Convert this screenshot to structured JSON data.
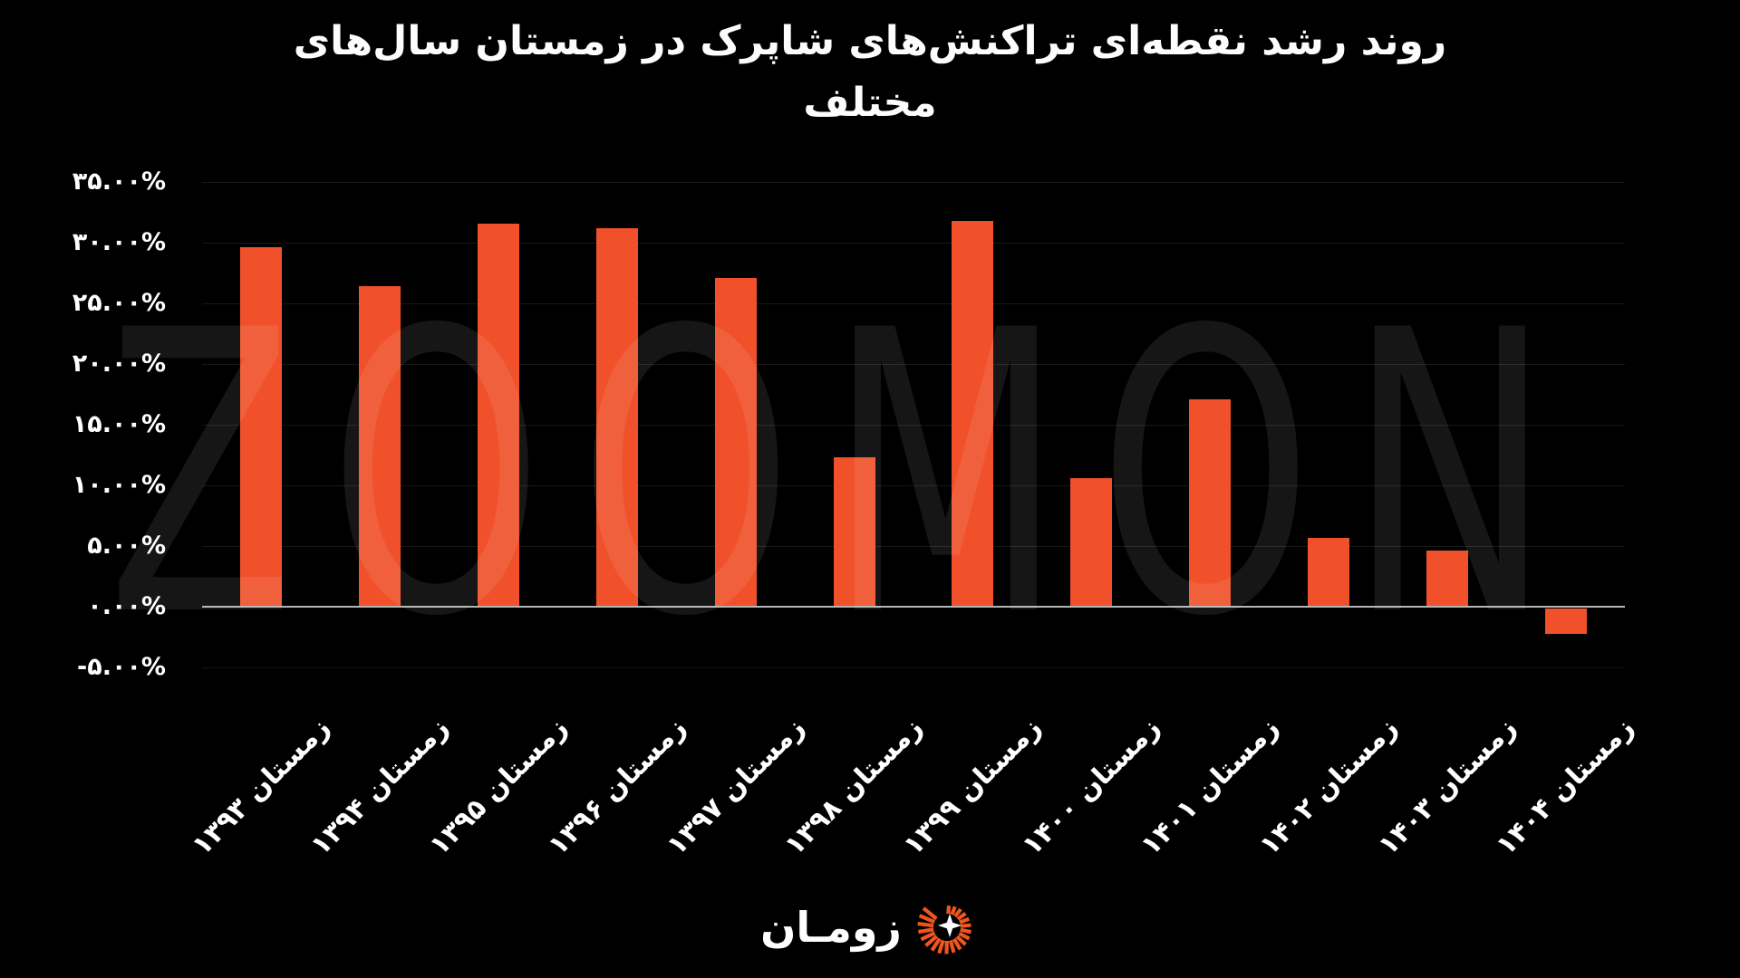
{
  "page": {
    "title_lines": [
      "روند رشد نقطه‌ای تراکنش‌های شاپرک در زمستان سال‌های",
      "مختلف"
    ],
    "watermark_text": "ZOOMON",
    "logo": {
      "text": "زومـان",
      "icon": "zooman-burst-icon",
      "accent_color": "#f0551f"
    }
  },
  "colors": {
    "background": "#000000",
    "bar": "#f0512a",
    "text": "#ffffff",
    "gridline": "rgba(255,255,255,0.09)",
    "zero_axis": "#b5b5b5",
    "watermark": "rgba(255,255,255,0.085)"
  },
  "chart_data": {
    "type": "bar",
    "title": "روند رشد نقطه‌ای تراکنش‌های شاپرک در زمستان سال‌های مختلف",
    "categories": [
      "زمستان ۱۳۹۳",
      "زمستان ۱۳۹۴",
      "زمستان ۱۳۹۵",
      "زمستان ۱۳۹۶",
      "زمستان ۱۳۹۷",
      "زمستان ۱۳۹۸",
      "زمستان ۱۳۹۹",
      "زمستان ۱۴۰۰",
      "زمستان ۱۴۰۱",
      "زمستان ۱۴۰۲",
      "زمستان ۱۴۰۳",
      "زمستان ۱۴۰۴"
    ],
    "values": [
      29.6,
      26.4,
      31.6,
      31.2,
      27.1,
      12.3,
      31.8,
      10.6,
      17.1,
      5.7,
      4.6,
      -2.1
    ],
    "xlabel": "",
    "ylabel": "",
    "ylim": [
      -5,
      35
    ],
    "yticks": [
      35,
      30,
      25,
      20,
      15,
      10,
      5,
      0,
      -5
    ],
    "ytick_labels": [
      "۳۵.۰۰%",
      "۳۰.۰۰%",
      "۲۵.۰۰%",
      "۲۰.۰۰%",
      "۱۵.۰۰%",
      "۱۰.۰۰%",
      "۵.۰۰%",
      "۰.۰۰%",
      "-۵.۰۰%"
    ],
    "grid": true,
    "legend": null,
    "bar_color": "#f0512a"
  }
}
